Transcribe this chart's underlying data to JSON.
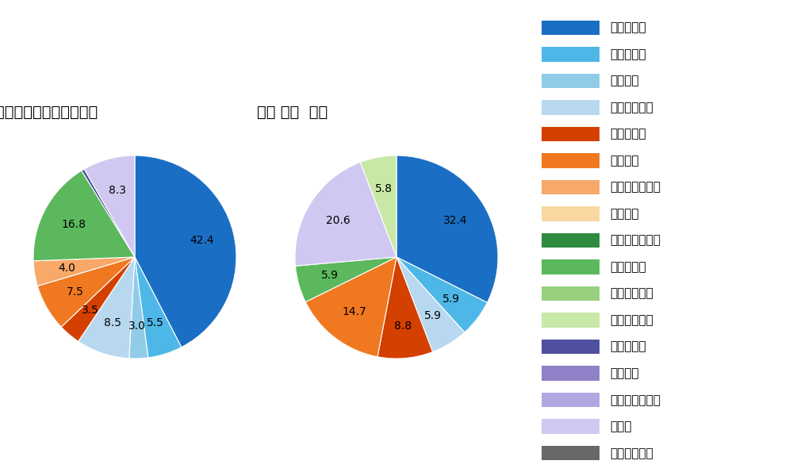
{
  "legend_labels": [
    "ストレート",
    "ツーシーム",
    "シュート",
    "カットボール",
    "スプリット",
    "フォーク",
    "チェンジアップ",
    "シンカー",
    "高速スライダー",
    "スライダー",
    "縦スライダー",
    "パワーカーブ",
    "スクリュー",
    "ナックル",
    "ナックルカーブ",
    "カーブ",
    "スローカーブ"
  ],
  "colors": {
    "ストレート": "#1a6fc4",
    "ツーシーム": "#4db8e8",
    "シュート": "#90cce8",
    "カットボール": "#b8d8f0",
    "スプリット": "#d44000",
    "フォーク": "#f07820",
    "チェンジアップ": "#f8a868",
    "シンカー": "#f8d8a0",
    "高速スライダー": "#2e8b40",
    "スライダー": "#5cb85c",
    "縦スライダー": "#98d080",
    "パワーカーブ": "#c8e8a8",
    "スクリュー": "#5050a0",
    "ナックル": "#9080c8",
    "ナックルカーブ": "#b0a8e0",
    "カーブ": "#d0c8f0",
    "スローカーブ": "#686868"
  },
  "left_title": "セ・リーグ全プレイヤー",
  "right_title": "若林 晰弘  選手",
  "left_data": [
    [
      "ストレート",
      42.4
    ],
    [
      "ツーシーム",
      5.5
    ],
    [
      "シュート",
      3.0
    ],
    [
      "カットボール",
      8.5
    ],
    [
      "スプリット",
      3.5
    ],
    [
      "フォーク",
      7.5
    ],
    [
      "チェンジアップ",
      4.0
    ],
    [
      "スライダー",
      16.8
    ],
    [
      "スクリュー",
      0.5
    ],
    [
      "カーブ",
      8.3
    ]
  ],
  "right_data": [
    [
      "ストレート",
      32.4
    ],
    [
      "ツーシーム",
      5.9
    ],
    [
      "カットボール",
      5.9
    ],
    [
      "スプリット",
      8.8
    ],
    [
      "フォーク",
      14.7
    ],
    [
      "スライダー",
      5.9
    ],
    [
      "カーブ",
      20.6
    ],
    [
      "パワーカーブ",
      5.8
    ]
  ],
  "background_color": "#ffffff",
  "label_fontsize": 10,
  "title_fontsize": 14,
  "legend_fontsize": 11
}
